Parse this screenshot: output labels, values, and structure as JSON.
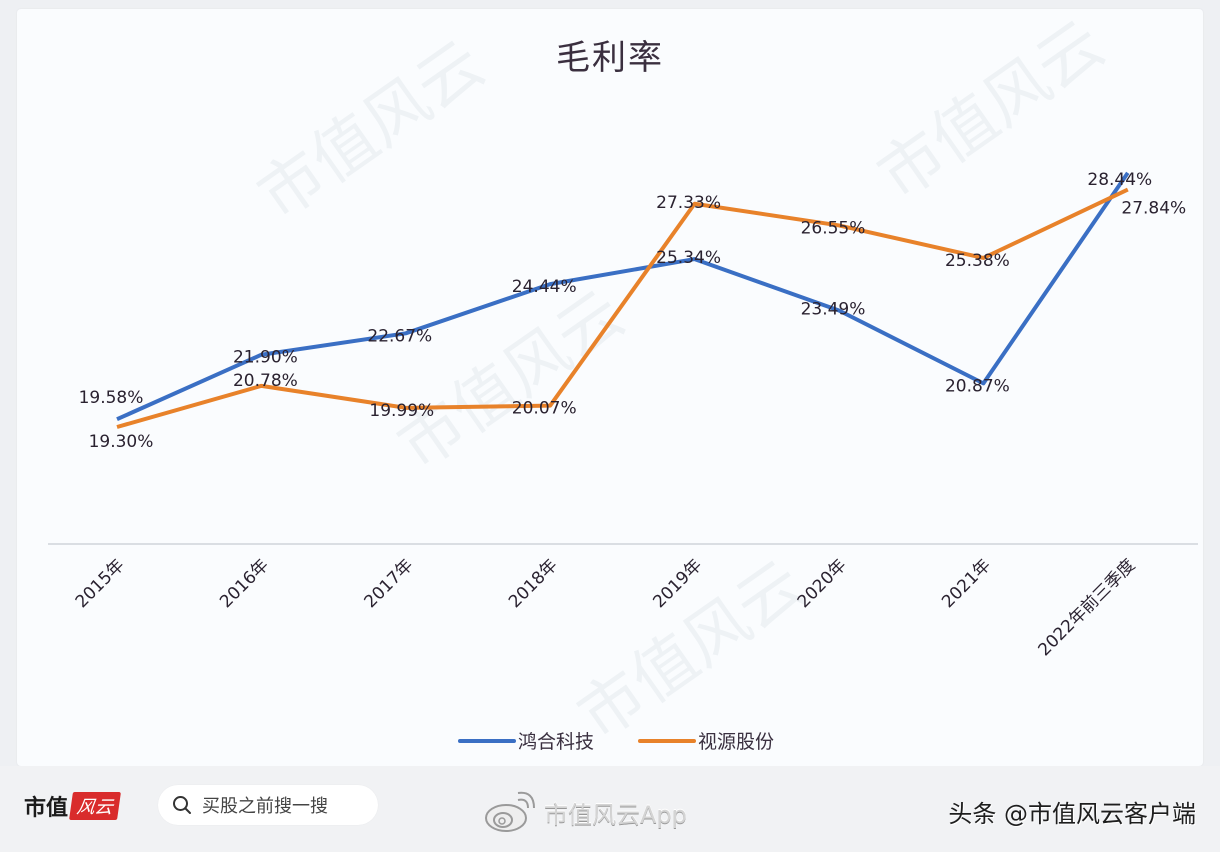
{
  "chart_data": {
    "type": "line",
    "title": "毛利率",
    "xlabel": "",
    "ylabel": "",
    "categories": [
      "2015年",
      "2016年",
      "2017年",
      "2018年",
      "2019年",
      "2020年",
      "2021年",
      "2022年前三季度"
    ],
    "series": [
      {
        "name": "鸿合科技",
        "color": "#3a6fc4",
        "values": [
          19.58,
          21.9,
          22.67,
          24.44,
          25.34,
          23.49,
          20.87,
          28.44
        ],
        "labels": [
          "19.58%",
          "21.90%",
          "22.67%",
          "24.44%",
          "25.34%",
          "23.49%",
          "20.87%",
          "28.44%"
        ]
      },
      {
        "name": "视源股份",
        "color": "#e8822a",
        "values": [
          19.3,
          20.78,
          19.99,
          20.07,
          27.33,
          26.55,
          25.38,
          27.84
        ],
        "labels": [
          "19.30%",
          "20.78%",
          "19.99%",
          "20.07%",
          "27.33%",
          "26.55%",
          "25.38%",
          "27.84%"
        ]
      }
    ],
    "legend_position": "bottom",
    "grid": false,
    "y_axis_visible": false
  },
  "chart": {
    "title": "毛利率",
    "legend": [
      {
        "label": "鸿合科技",
        "color": "#3a6fc4"
      },
      {
        "label": "视源股份",
        "color": "#e8822a"
      }
    ]
  },
  "footer": {
    "logo_text": "市值",
    "logo_badge": "风云",
    "search_placeholder": "买股之前搜一搜",
    "weibo_label": "市值风云App",
    "toutiao_label": "头条 @市值风云客户端"
  },
  "watermark": "市值风云"
}
